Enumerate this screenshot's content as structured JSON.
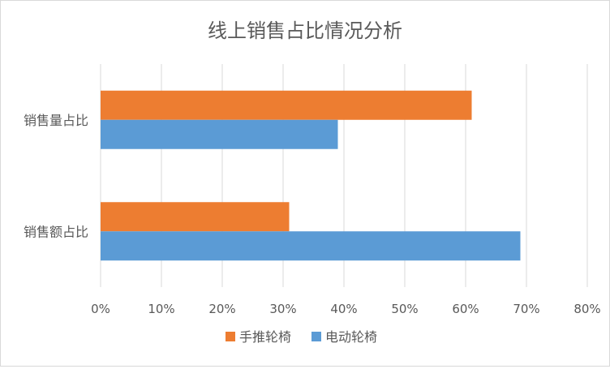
{
  "chart_data": {
    "type": "bar",
    "orientation": "horizontal",
    "title": "线上销售占比情况分析",
    "xlabel": "",
    "ylabel": "",
    "categories": [
      "销售量占比",
      "销售额占比"
    ],
    "series": [
      {
        "name": "手推轮椅",
        "values": [
          0.61,
          0.31
        ],
        "color": "#ED7D31"
      },
      {
        "name": "电动轮椅",
        "values": [
          0.39,
          0.69
        ],
        "color": "#5B9BD5"
      }
    ],
    "xlim": [
      0,
      0.8
    ],
    "xticks": [
      "0%",
      "10%",
      "20%",
      "30%",
      "40%",
      "50%",
      "60%",
      "70%",
      "80%"
    ],
    "grid": true,
    "legend_position": "bottom",
    "colors": {
      "grid": "#d9d9d9",
      "text": "#595959",
      "title": "#595959"
    }
  }
}
